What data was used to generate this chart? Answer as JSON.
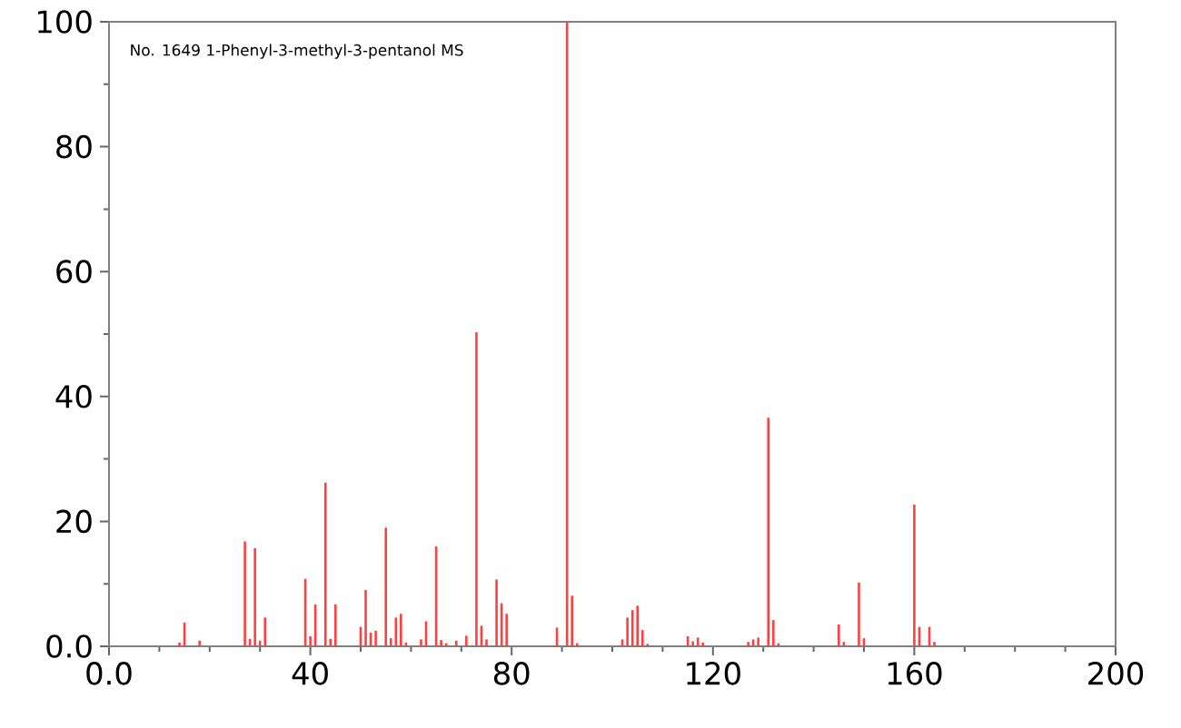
{
  "chart_data": {
    "type": "bar",
    "title": "No. 1649 1-Phenyl-3-methyl-3-pentanol MS",
    "x": [
      14,
      15,
      18,
      27,
      28,
      29,
      30,
      31,
      39,
      40,
      41,
      43,
      44,
      45,
      50,
      51,
      52,
      53,
      55,
      56,
      57,
      58,
      59,
      62,
      63,
      65,
      66,
      67,
      69,
      71,
      73,
      74,
      75,
      77,
      78,
      79,
      89,
      91,
      92,
      93,
      102,
      103,
      104,
      105,
      106,
      107,
      115,
      116,
      117,
      118,
      127,
      128,
      129,
      131,
      132,
      133,
      145,
      146,
      149,
      150,
      160,
      161,
      163,
      164
    ],
    "values": [
      0.6,
      3.8,
      0.9,
      16.8,
      1.2,
      15.7,
      0.9,
      4.6,
      10.8,
      1.6,
      6.7,
      26.2,
      1.2,
      6.7,
      3.1,
      9,
      2.2,
      2.5,
      19,
      1.3,
      4.6,
      5.2,
      0.6,
      1.1,
      4,
      16,
      1,
      0.5,
      0.9,
      1.7,
      50.3,
      3.3,
      1.1,
      10.7,
      6.9,
      5.2,
      3,
      100,
      8.1,
      0.5,
      1.1,
      4.6,
      5.8,
      6.5,
      2.6,
      0.4,
      1.6,
      0.8,
      1.4,
      0.6,
      0.7,
      1.1,
      1.4,
      36.6,
      4.2,
      0.5,
      3.5,
      0.7,
      10.2,
      1.3,
      22.7,
      3.1,
      3.1,
      0.7
    ],
    "color": "#ff4040",
    "xlim": [
      0,
      200
    ],
    "ylim": [
      0,
      100
    ],
    "xticks": [
      {
        "value": 0,
        "label": "0.0"
      },
      40,
      80,
      120,
      160,
      200
    ],
    "yticks": [
      {
        "value": 0,
        "label": "0.0"
      },
      20,
      40,
      60,
      80,
      100
    ],
    "grid": false
  }
}
